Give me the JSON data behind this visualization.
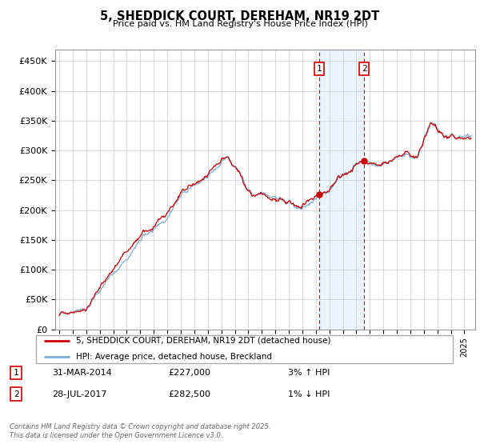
{
  "title": "5, SHEDDICK COURT, DEREHAM, NR19 2DT",
  "subtitle": "Price paid vs. HM Land Registry's House Price Index (HPI)",
  "ylim": [
    0,
    470000
  ],
  "yticks": [
    0,
    50000,
    100000,
    150000,
    200000,
    250000,
    300000,
    350000,
    400000,
    450000
  ],
  "ytick_labels": [
    "£0",
    "£50K",
    "£100K",
    "£150K",
    "£200K",
    "£250K",
    "£300K",
    "£350K",
    "£400K",
    "£450K"
  ],
  "xlim_start": 1994.7,
  "xlim_end": 2025.8,
  "sale1_date": 2014.25,
  "sale1_price": 227000,
  "sale2_date": 2017.58,
  "sale2_price": 282500,
  "hpi_line_color": "#7aadda",
  "price_line_color": "#cc0000",
  "shade_color": "#ddeeff",
  "grid_color": "#cccccc",
  "legend_label_price": "5, SHEDDICK COURT, DEREHAM, NR19 2DT (detached house)",
  "legend_label_hpi": "HPI: Average price, detached house, Breckland",
  "footer_text": "Contains HM Land Registry data © Crown copyright and database right 2025.\nThis data is licensed under the Open Government Licence v3.0.",
  "sale1_info": "31-MAR-2014",
  "sale1_amount": "£227,000",
  "sale1_pct": "3% ↑ HPI",
  "sale2_info": "28-JUL-2017",
  "sale2_amount": "£282,500",
  "sale2_pct": "1% ↓ HPI"
}
